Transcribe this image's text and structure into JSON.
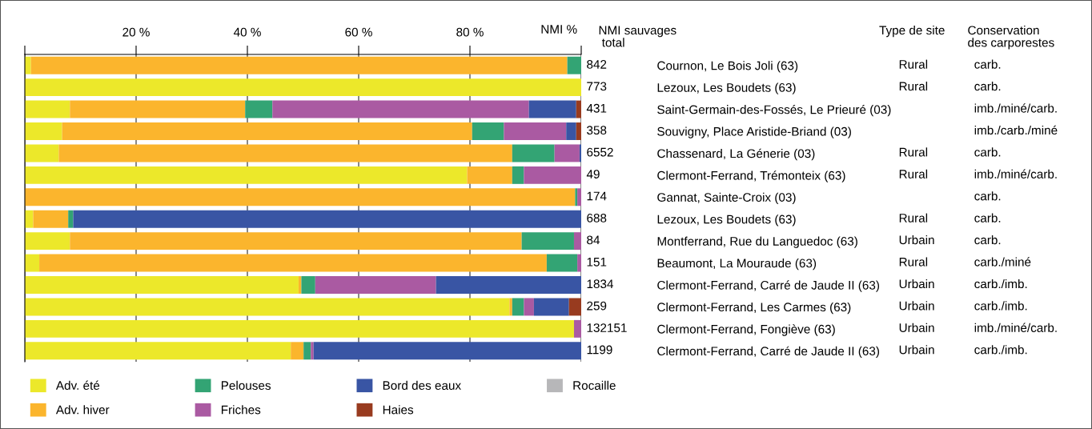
{
  "chart_data": {
    "type": "bar",
    "orientation": "horizontal",
    "stacked": true,
    "xlabel": "NMI %",
    "categories": [
      "Cournon, Le Bois Joli (63)",
      "Lezoux, Les Boudets (63)",
      "Saint-Germain-des-Fossés, Le Prieuré (03)",
      "Souvigny, Place Aristide-Briand (03)",
      "Chassenard, La Génerie (03)",
      "Clermont-Ferrand, Trémonteix (63)",
      "Gannat, Sainte-Croix (03)",
      "Lezoux, Les Boudets (63)",
      "Montferrand, Rue du Languedoc (63)",
      "Beaumont, La Mouraude (63)",
      "Clermont-Ferrand, Carré de Jaude II (63)",
      "Clermont-Ferrand, Les Carmes (63)",
      "Clermont-Ferrand, Fongiève (63)",
      "Clermont-Ferrand, Carré de Jaude II (63)"
    ],
    "series": [
      {
        "name": "Adv. été",
        "color": "#ece82a",
        "values": [
          1.1,
          100,
          8.1,
          6.7,
          6.1,
          79.5,
          null,
          1.5,
          8.1,
          2.6,
          49.2,
          87.1,
          98.7,
          47.8
        ]
      },
      {
        "name": "Adv. hiver",
        "color": "#fbb52d",
        "values": [
          96.4,
          null,
          31.5,
          73.7,
          81.5,
          8.1,
          98.9,
          6.3,
          81.2,
          91.2,
          0.5,
          0.5,
          null,
          2.3
        ]
      },
      {
        "name": "Pelouses",
        "color": "#33a474",
        "values": [
          2.5,
          null,
          4.9,
          5.7,
          7.6,
          2.1,
          0.4,
          0.9,
          9.4,
          5.5,
          2.5,
          2.1,
          null,
          1.3
        ]
      },
      {
        "name": "Friches",
        "color": "#aa5aa2",
        "values": [
          null,
          null,
          46.1,
          11.2,
          4.5,
          10.3,
          0.7,
          null,
          1.3,
          0.7,
          21.7,
          1.8,
          1.3,
          0.5
        ]
      },
      {
        "name": "Bord des eaux",
        "color": "#3955a4",
        "values": [
          null,
          null,
          8.5,
          1.8,
          0.3,
          null,
          null,
          91.3,
          null,
          null,
          26.1,
          6.3,
          null,
          48.1
        ]
      },
      {
        "name": "Haies",
        "color": "#983b1f",
        "values": [
          null,
          null,
          0.9,
          0.9,
          null,
          null,
          null,
          null,
          null,
          null,
          null,
          2.2,
          null,
          null
        ]
      },
      {
        "name": "Rocaille",
        "color": "#b7b7b9",
        "values": [
          null,
          null,
          null,
          null,
          null,
          null,
          null,
          null,
          null,
          null,
          null,
          null,
          null,
          null
        ]
      }
    ],
    "xlim": [
      0,
      100
    ],
    "xticks": [
      {
        "value": 0,
        "label": null
      },
      {
        "value": 20,
        "label": "20 %"
      },
      {
        "value": 40,
        "label": "40 %"
      },
      {
        "value": 60,
        "label": "60 %"
      },
      {
        "value": 80,
        "label": "80 %"
      },
      {
        "value": 100,
        "label": null
      }
    ],
    "grid": "x",
    "legend": "bottom",
    "annotations": [
      "NMI sauvages\n total",
      "Type de site",
      "Conservation\ndes carporestes",
      "842",
      "773",
      "431",
      "358",
      "6552",
      "49",
      "174",
      "688",
      "84",
      "151",
      "1834",
      "259",
      "132151",
      "1199",
      "Rural\nRural\n\n\nRural\nRural\n\nRural\nUrbain\nRural\nUrbain\nUrbain\nUrbain\nUrbain",
      "carb.",
      "carb.",
      "imb./miné/carb.",
      "imb./carb./miné",
      "carb.",
      "imb./miné/carb.",
      "carb.",
      "carb.",
      "carb.",
      "carb./miné",
      "carb./imb.",
      "carb./imb.",
      "imb./miné/carb.",
      "carb./imb."
    ]
  }
}
